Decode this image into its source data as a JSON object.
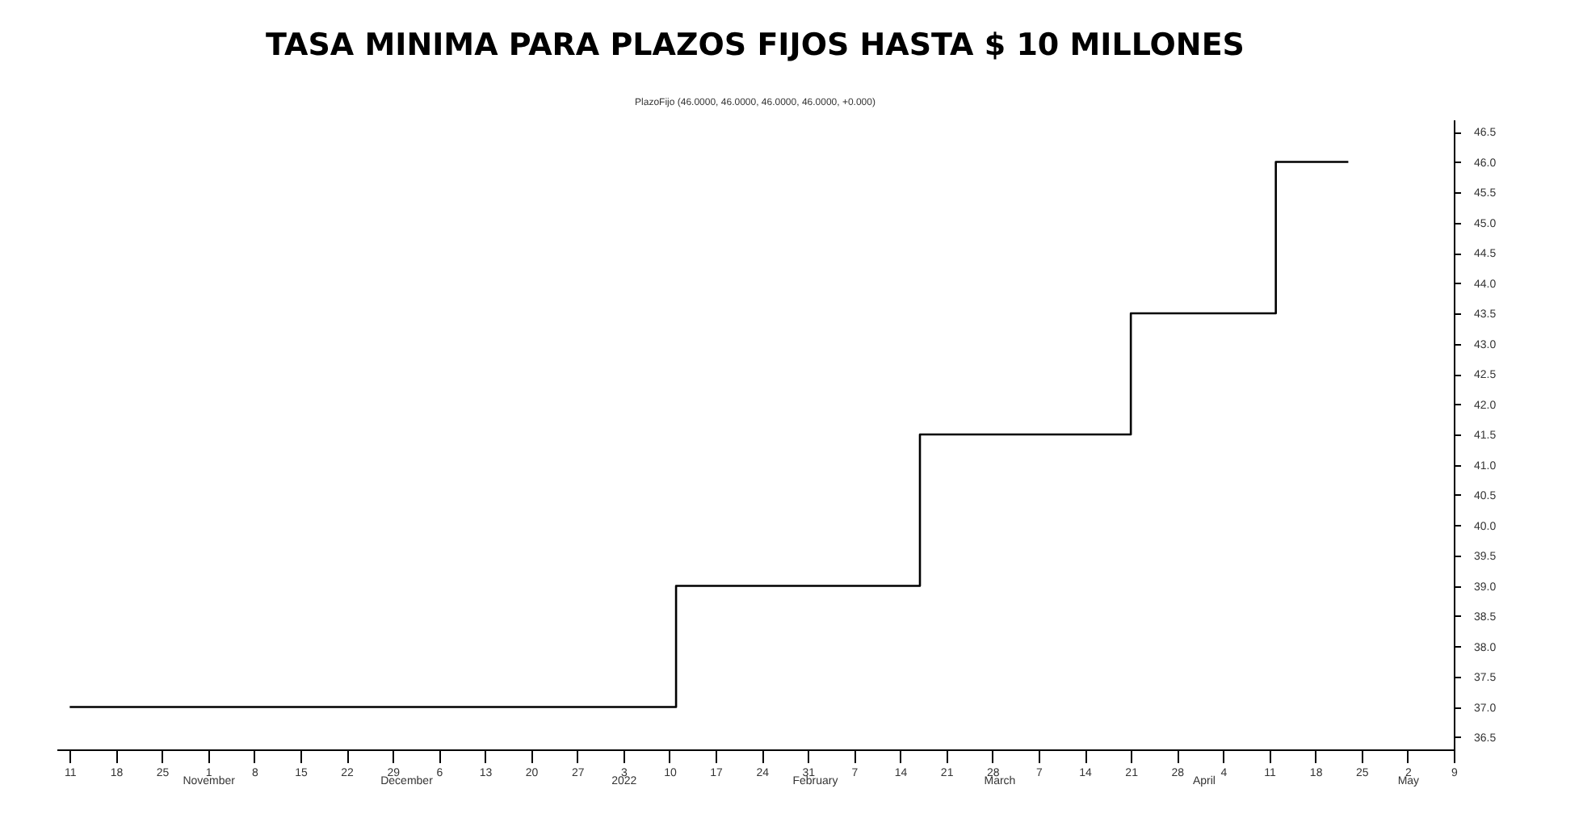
{
  "chart_data": {
    "type": "step",
    "title": "TASA MINIMA PARA PLAZOS FIJOS HASTA $ 10 MILLONES",
    "subtitle": "PlazoFijo (46.0000, 46.0000, 46.0000, 46.0000, +0.000)",
    "x": [
      "2021-10-11",
      "2022-01-11",
      "2022-02-17",
      "2022-03-21",
      "2022-04-12",
      "2022-04-23"
    ],
    "series": [
      {
        "color": "#000000",
        "values": [
          37,
          39,
          41.5,
          43.5,
          46,
          46
        ]
      }
    ],
    "xlim": [
      "2021-10-09",
      "2022-05-09"
    ],
    "xticks": [
      {
        "value": "2021-10-11",
        "label": "11"
      },
      {
        "value": "2021-10-18",
        "label": "18"
      },
      {
        "value": "2021-10-25",
        "label": "25"
      },
      {
        "value": "2021-11-01",
        "label": "1"
      },
      {
        "value": "2021-11-08",
        "label": "8"
      },
      {
        "value": "2021-11-15",
        "label": "15"
      },
      {
        "value": "2021-11-22",
        "label": "22"
      },
      {
        "value": "2021-11-29",
        "label": "29"
      },
      {
        "value": "2021-12-06",
        "label": "6"
      },
      {
        "value": "2021-12-13",
        "label": "13"
      },
      {
        "value": "2021-12-20",
        "label": "20"
      },
      {
        "value": "2021-12-27",
        "label": "27"
      },
      {
        "value": "2022-01-03",
        "label": "3"
      },
      {
        "value": "2022-01-10",
        "label": "10"
      },
      {
        "value": "2022-01-17",
        "label": "17"
      },
      {
        "value": "2022-01-24",
        "label": "24"
      },
      {
        "value": "2022-01-31",
        "label": "31"
      },
      {
        "value": "2022-02-07",
        "label": "7"
      },
      {
        "value": "2022-02-14",
        "label": "14"
      },
      {
        "value": "2022-02-21",
        "label": "21"
      },
      {
        "value": "2022-02-28",
        "label": "28"
      },
      {
        "value": "2022-03-07",
        "label": "7"
      },
      {
        "value": "2022-03-14",
        "label": "14"
      },
      {
        "value": "2022-03-21",
        "label": "21"
      },
      {
        "value": "2022-03-28",
        "label": "28"
      },
      {
        "value": "2022-04-04",
        "label": "4"
      },
      {
        "value": "2022-04-11",
        "label": "11"
      },
      {
        "value": "2022-04-18",
        "label": "18"
      },
      {
        "value": "2022-04-25",
        "label": "25"
      },
      {
        "value": "2022-05-02",
        "label": "2"
      },
      {
        "value": "2022-05-09",
        "label": "9"
      }
    ],
    "ylim": [
      36.3,
      46.7
    ],
    "yticks": [
      {
        "value": 36.5,
        "label": "36.5"
      },
      {
        "value": 37,
        "label": "37.0"
      },
      {
        "value": 37.5,
        "label": "37.5"
      },
      {
        "value": 38,
        "label": "38.0"
      },
      {
        "value": 38.5,
        "label": "38.5"
      },
      {
        "value": 39,
        "label": "39.0"
      },
      {
        "value": 39.5,
        "label": "39.5"
      },
      {
        "value": 40,
        "label": "40.0"
      },
      {
        "value": 40.5,
        "label": "40.5"
      },
      {
        "value": 41,
        "label": "41.0"
      },
      {
        "value": 41.5,
        "label": "41.5"
      },
      {
        "value": 42,
        "label": "42.0"
      },
      {
        "value": 42.5,
        "label": "42.5"
      },
      {
        "value": 43,
        "label": "43.0"
      },
      {
        "value": 43.5,
        "label": "43.5"
      },
      {
        "value": 44,
        "label": "44.0"
      },
      {
        "value": 44.5,
        "label": "44.5"
      },
      {
        "value": 45,
        "label": "45.0"
      },
      {
        "value": 45.5,
        "label": "45.5"
      },
      {
        "value": 46,
        "label": "46.0"
      },
      {
        "value": 46.5,
        "label": "46.5"
      }
    ],
    "x2lim": [
      "2021-10-09",
      "2022-05-09"
    ],
    "x2ticks": [
      {
        "value": "2021-11-01",
        "label": "November"
      },
      {
        "value": "2021-12-01",
        "label": "December"
      },
      {
        "value": "2022-01-03",
        "label": "2022"
      },
      {
        "value": "2022-02-01",
        "label": "February"
      },
      {
        "value": "2022-03-01",
        "label": "March"
      },
      {
        "value": "2022-04-01",
        "label": "April"
      },
      {
        "value": "2022-05-02",
        "label": "May"
      }
    ],
    "grid": false,
    "line_style": "solid"
  }
}
